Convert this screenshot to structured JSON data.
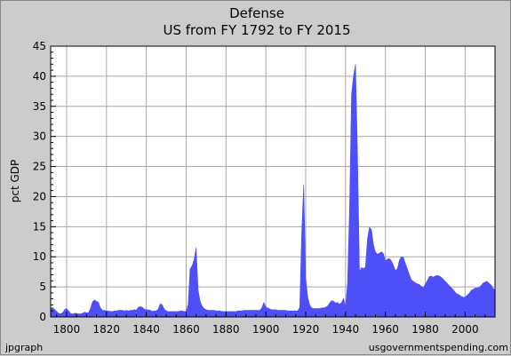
{
  "chart_data": {
    "type": "area",
    "title": "Defense",
    "subtitle": "US from FY 1792 to FY 2015",
    "xlabel": "",
    "ylabel": "pct GDP",
    "xlim": [
      1792,
      2015
    ],
    "ylim": [
      0,
      45
    ],
    "x_ticks": [
      "1800",
      "1820",
      "1840",
      "1860",
      "1880",
      "1900",
      "1920",
      "1940",
      "1960",
      "1980",
      "2000"
    ],
    "y_ticks": [
      "0",
      "5",
      "10",
      "15",
      "20",
      "25",
      "30",
      "35",
      "40",
      "45"
    ],
    "grid": true,
    "series_color": "#4f4ff7",
    "footer_left": "jpgraph",
    "footer_right": "usgovernmentspending.com",
    "x": [
      1792,
      1793,
      1794,
      1795,
      1796,
      1797,
      1798,
      1799,
      1800,
      1801,
      1802,
      1803,
      1804,
      1805,
      1806,
      1807,
      1808,
      1809,
      1810,
      1811,
      1812,
      1813,
      1814,
      1815,
      1816,
      1817,
      1818,
      1819,
      1820,
      1821,
      1822,
      1823,
      1824,
      1825,
      1826,
      1827,
      1828,
      1829,
      1830,
      1831,
      1832,
      1833,
      1834,
      1835,
      1836,
      1837,
      1838,
      1839,
      1840,
      1841,
      1842,
      1843,
      1844,
      1845,
      1846,
      1847,
      1848,
      1849,
      1850,
      1851,
      1852,
      1853,
      1854,
      1855,
      1856,
      1857,
      1858,
      1859,
      1860,
      1861,
      1862,
      1863,
      1864,
      1865,
      1866,
      1867,
      1868,
      1869,
      1870,
      1871,
      1872,
      1873,
      1874,
      1875,
      1876,
      1877,
      1878,
      1879,
      1880,
      1881,
      1882,
      1883,
      1884,
      1885,
      1886,
      1887,
      1888,
      1889,
      1890,
      1891,
      1892,
      1893,
      1894,
      1895,
      1896,
      1897,
      1898,
      1899,
      1900,
      1901,
      1902,
      1903,
      1904,
      1905,
      1906,
      1907,
      1908,
      1909,
      1910,
      1911,
      1912,
      1913,
      1914,
      1915,
      1916,
      1917,
      1918,
      1919,
      1920,
      1921,
      1922,
      1923,
      1924,
      1925,
      1926,
      1927,
      1928,
      1929,
      1930,
      1931,
      1932,
      1933,
      1934,
      1935,
      1936,
      1937,
      1938,
      1939,
      1940,
      1941,
      1942,
      1943,
      1944,
      1945,
      1946,
      1947,
      1948,
      1949,
      1950,
      1951,
      1952,
      1953,
      1954,
      1955,
      1956,
      1957,
      1958,
      1959,
      1960,
      1961,
      1962,
      1963,
      1964,
      1965,
      1966,
      1967,
      1968,
      1969,
      1970,
      1971,
      1972,
      1973,
      1974,
      1975,
      1976,
      1977,
      1978,
      1979,
      1980,
      1981,
      1982,
      1983,
      1984,
      1985,
      1986,
      1987,
      1988,
      1989,
      1990,
      1991,
      1992,
      1993,
      1994,
      1995,
      1996,
      1997,
      1998,
      1999,
      2000,
      2001,
      2002,
      2003,
      2004,
      2005,
      2006,
      2007,
      2008,
      2009,
      2010,
      2011,
      2012,
      2013,
      2014,
      2015
    ],
    "values": [
      1.3,
      1.6,
      1.2,
      0.9,
      0.6,
      0.5,
      0.7,
      1.2,
      1.4,
      1.0,
      0.6,
      0.5,
      0.6,
      0.6,
      0.5,
      0.5,
      0.6,
      0.8,
      0.7,
      0.7,
      1.4,
      2.5,
      2.8,
      2.6,
      2.4,
      1.5,
      1.1,
      1.1,
      1.0,
      1.0,
      0.9,
      0.9,
      1.0,
      1.0,
      1.1,
      1.1,
      1.1,
      1.0,
      1.1,
      1.0,
      1.1,
      1.1,
      1.2,
      1.1,
      1.6,
      1.7,
      1.6,
      1.3,
      1.2,
      1.2,
      1.1,
      0.9,
      1.0,
      1.0,
      1.3,
      2.2,
      2.0,
      1.3,
      1.0,
      0.9,
      0.9,
      0.9,
      0.9,
      0.9,
      0.9,
      1.0,
      1.0,
      0.9,
      0.9,
      2.0,
      8.0,
      8.5,
      9.5,
      11.5,
      4.5,
      2.6,
      1.8,
      1.4,
      1.2,
      1.1,
      1.1,
      1.1,
      1.1,
      1.0,
      1.0,
      1.0,
      0.9,
      0.9,
      0.9,
      0.9,
      0.9,
      0.9,
      0.9,
      0.9,
      1.0,
      1.0,
      1.0,
      1.1,
      1.1,
      1.1,
      1.1,
      1.1,
      1.1,
      1.1,
      1.1,
      1.1,
      1.5,
      2.4,
      1.6,
      1.5,
      1.3,
      1.2,
      1.2,
      1.2,
      1.1,
      1.1,
      1.1,
      1.1,
      1.1,
      1.0,
      1.0,
      1.0,
      1.0,
      1.0,
      1.0,
      1.6,
      14.0,
      22.0,
      6.5,
      3.3,
      2.0,
      1.5,
      1.4,
      1.4,
      1.4,
      1.4,
      1.5,
      1.5,
      1.6,
      1.8,
      2.3,
      2.7,
      2.6,
      2.3,
      2.4,
      2.1,
      2.4,
      3.1,
      1.7,
      5.6,
      18.0,
      37.0,
      40.0,
      42.0,
      27.0,
      7.5,
      8.2,
      8.0,
      8.3,
      13.0,
      14.9,
      14.5,
      12.0,
      10.8,
      10.4,
      10.6,
      10.8,
      10.5,
      9.3,
      9.6,
      9.7,
      9.3,
      8.6,
      7.7,
      8.0,
      9.4,
      10.0,
      9.9,
      8.9,
      8.0,
      7.0,
      6.2,
      5.9,
      5.7,
      5.5,
      5.4,
      5.1,
      4.9,
      5.4,
      6.0,
      6.7,
      6.8,
      6.6,
      6.8,
      6.9,
      6.8,
      6.6,
      6.3,
      5.9,
      5.6,
      5.2,
      4.9,
      4.5,
      4.1,
      3.8,
      3.7,
      3.4,
      3.3,
      3.3,
      3.6,
      3.9,
      4.4,
      4.6,
      4.8,
      4.8,
      4.9,
      5.2,
      5.6,
      5.8,
      5.9,
      5.6,
      5.3,
      4.8,
      4.4
    ]
  }
}
